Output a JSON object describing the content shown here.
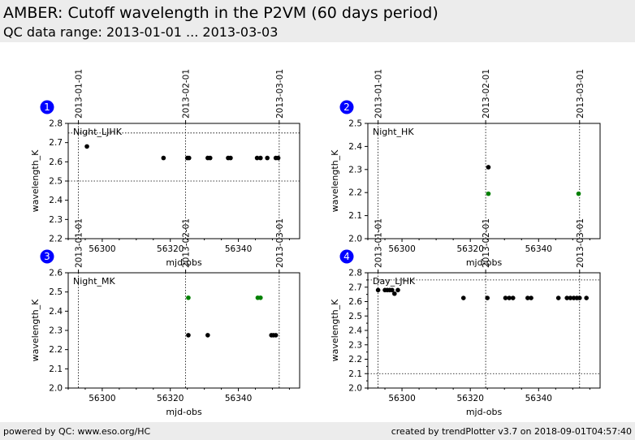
{
  "header": {
    "title": "AMBER: Cutoff wavelength in the P2VM (60 days period)",
    "subtitle": "QC data range: 2013-01-01 ... 2013-03-03"
  },
  "footer": {
    "left": "powered by QC: www.eso.org/HC",
    "right": "created by trendPlotter v3.7 on 2018-09-01T04:57:40"
  },
  "colors": {
    "black_point": "#000000",
    "green_point": "#008000",
    "badge": "#0000ff"
  },
  "date_markers": [
    {
      "label": "2013-01-01",
      "mjd": 56293
    },
    {
      "label": "2013-02-01",
      "mjd": 56324.5
    },
    {
      "label": "2013-03-01",
      "mjd": 56352
    }
  ],
  "chart_data": [
    {
      "type": "scatter",
      "badge": "1",
      "legend_text": "Night_LJHK",
      "xlabel": "mjd-obs",
      "ylabel": "wavelength_K",
      "xlim": [
        56290,
        56358
      ],
      "ylim": [
        2.2,
        2.8
      ],
      "xticks": [
        56300,
        56320,
        56340
      ],
      "yticks": [
        2.2,
        2.3,
        2.4,
        2.5,
        2.6,
        2.7,
        2.8
      ],
      "yticks_minor": [],
      "hlines": [
        2.5,
        2.75
      ],
      "series": [
        {
          "color": "black",
          "points": [
            [
              56295.5,
              2.68
            ],
            [
              56318,
              2.62
            ],
            [
              56325,
              2.62
            ],
            [
              56325.5,
              2.62
            ],
            [
              56331,
              2.62
            ],
            [
              56331.7,
              2.62
            ],
            [
              56337,
              2.62
            ],
            [
              56337.7,
              2.62
            ],
            [
              56345.5,
              2.62
            ],
            [
              56346.5,
              2.62
            ],
            [
              56348.5,
              2.62
            ],
            [
              56351,
              2.62
            ],
            [
              56351.7,
              2.62
            ]
          ]
        }
      ]
    },
    {
      "type": "scatter",
      "badge": "2",
      "legend_text": "Night_HK",
      "xlabel": "mjd-obs",
      "ylabel": "wavelength_K",
      "xlim": [
        56290,
        56358
      ],
      "ylim": [
        2.0,
        2.5
      ],
      "xticks": [
        56300,
        56320,
        56340
      ],
      "yticks": [
        2.0,
        2.1,
        2.2,
        2.3,
        2.4,
        2.5
      ],
      "yticks_minor": [],
      "hlines": [],
      "series": [
        {
          "color": "black",
          "points": [
            [
              56325.3,
              2.31
            ]
          ]
        },
        {
          "color": "green",
          "points": [
            [
              56325.3,
              2.195
            ],
            [
              56351.7,
              2.195
            ]
          ]
        }
      ]
    },
    {
      "type": "scatter",
      "badge": "3",
      "legend_text": "Night_MK",
      "xlabel": "mjd-obs",
      "ylabel": "wavelength_K",
      "xlim": [
        56290,
        56358
      ],
      "ylim": [
        2.0,
        2.6
      ],
      "xticks": [
        56300,
        56320,
        56340
      ],
      "yticks": [
        2.0,
        2.1,
        2.2,
        2.3,
        2.4,
        2.5,
        2.6
      ],
      "yticks_minor": [],
      "hlines": [],
      "series": [
        {
          "color": "black",
          "points": [
            [
              56325.3,
              2.275
            ],
            [
              56331,
              2.275
            ],
            [
              56349.7,
              2.275
            ],
            [
              56350.3,
              2.275
            ],
            [
              56351,
              2.275
            ]
          ]
        },
        {
          "color": "green",
          "points": [
            [
              56325.3,
              2.47
            ],
            [
              56345.7,
              2.47
            ],
            [
              56346.5,
              2.47
            ]
          ]
        }
      ]
    },
    {
      "type": "scatter",
      "badge": "4",
      "legend_text": "Day_LJHK",
      "xlabel": "mjd-obs",
      "ylabel": "wavelength_K",
      "xlim": [
        56290,
        56358
      ],
      "ylim": [
        2.0,
        2.8
      ],
      "xticks": [
        56300,
        56320,
        56340
      ],
      "yticks": [
        2.0,
        2.1,
        2.2,
        2.3,
        2.4,
        2.5,
        2.6,
        2.7,
        2.8
      ],
      "yticks_minor": [
        2.05,
        2.15,
        2.25,
        2.35,
        2.45,
        2.55,
        2.65,
        2.75
      ],
      "hlines": [
        2.1,
        2.75
      ],
      "series": [
        {
          "color": "black",
          "points": [
            [
              56293,
              2.68
            ],
            [
              56295,
              2.68
            ],
            [
              56295.7,
              2.68
            ],
            [
              56296.4,
              2.68
            ],
            [
              56297.1,
              2.68
            ],
            [
              56297.8,
              2.655
            ],
            [
              56298.8,
              2.68
            ],
            [
              56318,
              2.625
            ],
            [
              56325,
              2.625
            ],
            [
              56330.3,
              2.625
            ],
            [
              56331.4,
              2.625
            ],
            [
              56332.5,
              2.625
            ],
            [
              56336.8,
              2.625
            ],
            [
              56337.8,
              2.625
            ],
            [
              56345.8,
              2.625
            ],
            [
              56348.3,
              2.625
            ],
            [
              56349.3,
              2.625
            ],
            [
              56350.3,
              2.625
            ],
            [
              56351.2,
              2.625
            ],
            [
              56352,
              2.625
            ],
            [
              56354,
              2.625
            ]
          ]
        }
      ]
    }
  ]
}
